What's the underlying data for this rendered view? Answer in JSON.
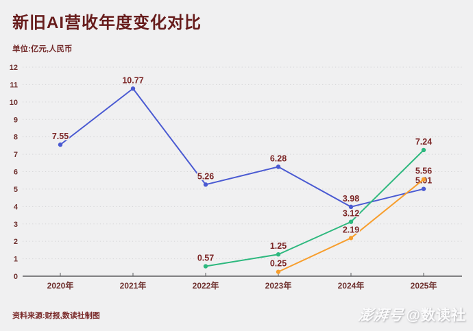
{
  "page": {
    "background": "#f0f0f1"
  },
  "header": {
    "title": "新旧AI营收年度变化对比",
    "subtitle": "单位:亿元,人民币"
  },
  "footer": {
    "source": "资料来源:财报,数读社制图",
    "watermark": {
      "brand": "澎湃号",
      "handle": "@数读社"
    }
  },
  "chart_data": {
    "type": "line",
    "title": "新旧AI营收年度变化对比",
    "unit_note": "单位:亿元,人民币",
    "categories": [
      "2020年",
      "2021年",
      "2022年",
      "2023年",
      "2024年",
      "2025年"
    ],
    "series": [
      {
        "name": "blue-line",
        "color": "#4a5ad2",
        "values": [
          7.55,
          10.77,
          5.26,
          6.28,
          3.98,
          5.01
        ]
      },
      {
        "name": "green-line",
        "color": "#2db87e",
        "values": [
          null,
          null,
          0.57,
          1.25,
          3.12,
          7.24
        ]
      },
      {
        "name": "orange-line",
        "color": "#f79e2d",
        "values": [
          null,
          null,
          null,
          0.25,
          2.19,
          5.56
        ]
      }
    ],
    "xlabel": "",
    "ylabel": "",
    "ylim": [
      0,
      12
    ],
    "ytick_step": 1,
    "grid": "horizontal-dotted",
    "legend": "none",
    "colors": {
      "value_label": "#7b2525",
      "tick_label": "#6e302e",
      "axis": "#5a5b5e",
      "gridline": "#d4d4d6"
    }
  }
}
